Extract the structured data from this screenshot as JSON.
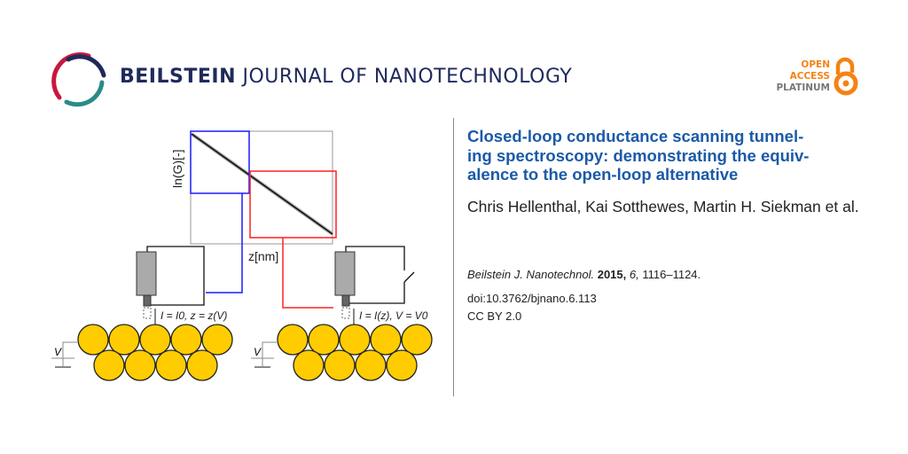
{
  "header": {
    "journal_bold": "BEILSTEIN",
    "journal_rest": "JOURNAL OF NANOTECHNOLOGY",
    "open_access": [
      "OPEN",
      "ACCESS",
      "PLATINUM"
    ],
    "colors": {
      "brand_navy": "#1f2a5c",
      "brand_red": "#c8173f",
      "brand_teal": "#2a8a8a",
      "open_access_orange": "#f68212",
      "platinum_gray": "#777777"
    }
  },
  "figure": {
    "y_axis_label": "ln(G)[-]",
    "x_axis_label": "z[nm]",
    "left_condition": "I = I0, z = z(V)",
    "right_condition": "I = I(z), V = V0",
    "voltage_label": "V",
    "colors": {
      "closed_loop": "#1a1aff",
      "open_loop": "#ff2020",
      "atoms": "#ffcc00"
    }
  },
  "article": {
    "title_lines": [
      "Closed-loop conductance scanning tunnel-",
      "ing spectroscopy: demonstrating the equiv-",
      "alence to the open-loop alternative"
    ],
    "authors": "Chris Hellenthal, Kai Sotthewes, Martin H. Siekman et al.",
    "journal_abbrev": "Beilstein J. Nanotechnol.",
    "year": "2015,",
    "volume": "6,",
    "pages": "1116–1124.",
    "doi": "doi:10.3762/bjnano.6.113",
    "license": "CC BY 2.0",
    "title_color": "#1b5aa8"
  }
}
